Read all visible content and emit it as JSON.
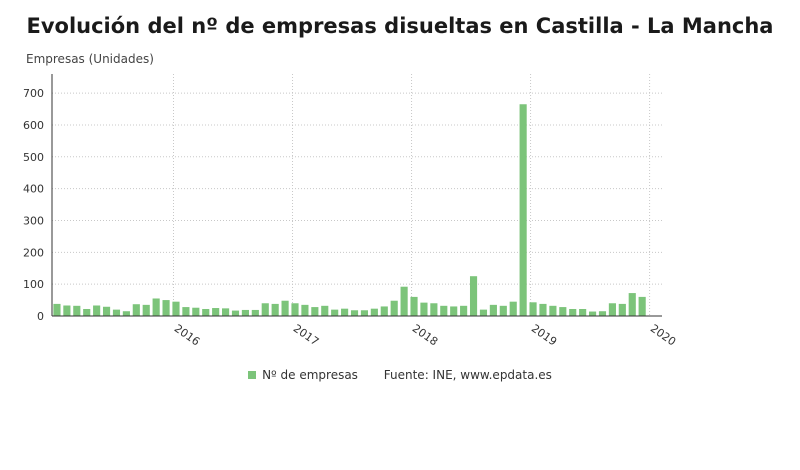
{
  "title": "Evolución del nº de empresas disueltas en Castilla - La Mancha",
  "colors": {
    "bar": "#7cc47a",
    "grid": "#c8c8c8",
    "axis": "#333333"
  },
  "chart_data": {
    "type": "bar",
    "ylabel": "Empresas (Unidades)",
    "ylim": [
      0,
      760
    ],
    "yticks": [
      0,
      100,
      200,
      300,
      400,
      500,
      600,
      700
    ],
    "x_tick_labels": [
      "2016",
      "2017",
      "2018",
      "2019",
      "2020"
    ],
    "grid": true,
    "legend": "bottom",
    "series": [
      {
        "name": "Nº de empresas",
        "categories": [
          "2015-01",
          "2015-02",
          "2015-03",
          "2015-04",
          "2015-05",
          "2015-06",
          "2015-07",
          "2015-08",
          "2015-09",
          "2015-10",
          "2015-11",
          "2015-12",
          "2016-01",
          "2016-02",
          "2016-03",
          "2016-04",
          "2016-05",
          "2016-06",
          "2016-07",
          "2016-08",
          "2016-09",
          "2016-10",
          "2016-11",
          "2016-12",
          "2017-01",
          "2017-02",
          "2017-03",
          "2017-04",
          "2017-05",
          "2017-06",
          "2017-07",
          "2017-08",
          "2017-09",
          "2017-10",
          "2017-11",
          "2017-12",
          "2018-01",
          "2018-02",
          "2018-03",
          "2018-04",
          "2018-05",
          "2018-06",
          "2018-07",
          "2018-08",
          "2018-09",
          "2018-10",
          "2018-11",
          "2018-12",
          "2019-01",
          "2019-02",
          "2019-03",
          "2019-04",
          "2019-05",
          "2019-06",
          "2019-07",
          "2019-08",
          "2019-09",
          "2019-10",
          "2019-11",
          "2019-12",
          "2020-01"
        ],
        "values": [
          38,
          33,
          32,
          22,
          33,
          29,
          20,
          15,
          37,
          35,
          55,
          50,
          45,
          28,
          26,
          22,
          25,
          24,
          17,
          19,
          19,
          40,
          38,
          48,
          40,
          35,
          28,
          32,
          20,
          23,
          18,
          18,
          23,
          30,
          48,
          92,
          60,
          42,
          40,
          32,
          30,
          32,
          125,
          20,
          35,
          32,
          45,
          665,
          43,
          38,
          32,
          28,
          22,
          22,
          14,
          15,
          40,
          38,
          72,
          60,
          0
        ]
      }
    ]
  },
  "legend": {
    "series_label": "Nº de empresas",
    "source": "Fuente: INE, www.epdata.es"
  }
}
